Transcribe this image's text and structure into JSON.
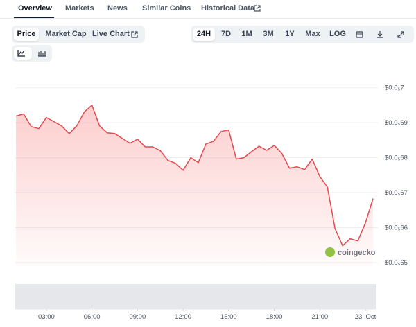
{
  "tabs": [
    "Overview",
    "Markets",
    "News",
    "Similar Coins",
    "Historical Data"
  ],
  "chart_type_buttons": [
    "Price",
    "Market Cap",
    "Live Chart"
  ],
  "range_buttons": [
    "24H",
    "7D",
    "1M",
    "3M",
    "1Y",
    "Max",
    "LOG"
  ],
  "chart_data": {
    "type": "line",
    "watermark": "coingecko",
    "x": [
      1.0,
      1.5,
      2.0,
      2.5,
      3.0,
      3.5,
      4.0,
      4.5,
      5.0,
      5.5,
      6.0,
      6.5,
      7.0,
      7.5,
      8.0,
      8.5,
      9.0,
      9.5,
      10.0,
      10.5,
      11.0,
      11.5,
      12.0,
      12.5,
      13.0,
      13.5,
      14.0,
      14.5,
      15.0,
      15.5,
      16.0,
      16.5,
      17.0,
      17.5,
      18.0,
      18.5,
      19.0,
      19.5,
      20.0,
      20.5,
      21.0,
      21.5,
      22.0,
      22.5,
      23.0,
      23.5,
      24.0,
      24.5
    ],
    "series": [
      {
        "color": "#e5484d",
        "values": [
          6.919e-07,
          6.925e-07,
          6.889e-07,
          6.883e-07,
          6.915e-07,
          6.903e-07,
          6.891e-07,
          6.869e-07,
          6.891e-07,
          6.931e-07,
          6.95e-07,
          6.891e-07,
          6.871e-07,
          6.869e-07,
          6.855e-07,
          6.841e-07,
          6.853e-07,
          6.831e-07,
          6.831e-07,
          6.82e-07,
          6.792e-07,
          6.784e-07,
          6.764e-07,
          6.8e-07,
          6.786e-07,
          6.839e-07,
          6.847e-07,
          6.875e-07,
          6.879e-07,
          6.796e-07,
          6.8e-07,
          6.817e-07,
          6.833e-07,
          6.821e-07,
          6.835e-07,
          6.812e-07,
          6.77e-07,
          6.774e-07,
          6.766e-07,
          6.796e-07,
          6.746e-07,
          6.716e-07,
          6.597e-07,
          6.548e-07,
          6.568e-07,
          6.562e-07,
          6.613e-07,
          6.683e-07
        ]
      }
    ],
    "xlim": [
      0.95,
      24.73
    ],
    "xticks": [
      {
        "value": 3,
        "label": "03:00"
      },
      {
        "value": 6,
        "label": "06:00"
      },
      {
        "value": 9,
        "label": "09:00"
      },
      {
        "value": 12,
        "label": "12:00"
      },
      {
        "value": 15,
        "label": "15:00"
      },
      {
        "value": 18,
        "label": "18:00"
      },
      {
        "value": 21,
        "label": "21:00"
      },
      {
        "value": 24,
        "label": "23. Oct"
      }
    ],
    "ylim": [
      6.49e-07,
      7.045e-07
    ],
    "yticks": [
      {
        "value": 7e-07,
        "label": "$0.0₅7"
      },
      {
        "value": 6.9e-07,
        "label": "$0.0₅69"
      },
      {
        "value": 6.8e-07,
        "label": "$0.0₅68"
      },
      {
        "value": 6.7e-07,
        "label": "$0.0₅67"
      },
      {
        "value": 6.6e-07,
        "label": "$0.0₅66"
      },
      {
        "value": 6.5e-07,
        "label": "$0.0₅65"
      }
    ],
    "grid": true
  }
}
